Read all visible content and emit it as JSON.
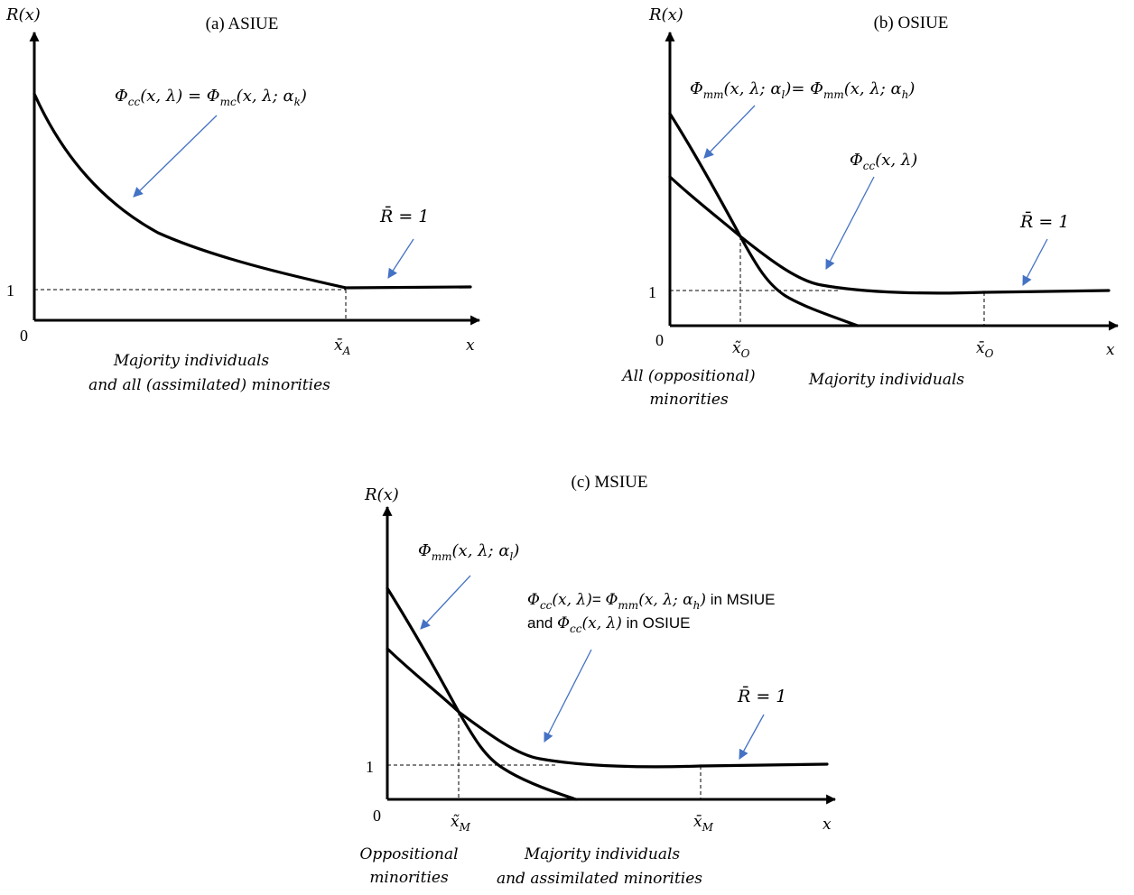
{
  "colors": {
    "ink": "#000000",
    "pointer": "#4472C4",
    "background": "#ffffff"
  },
  "panels": {
    "a": {
      "title": "(a) ASIUE",
      "y_axis_label": "R(x)",
      "x_axis_label": "x",
      "origin": "0",
      "one": "1",
      "tick_label": "x̄A",
      "curve_label": "Φcc(x, λ) = Φmc(x, λ; αk)",
      "rbar_label": "R̄ = 1",
      "regions": {
        "majority_line1": "Majority individuals",
        "majority_line2": "and all (assimilated) minorities"
      }
    },
    "b": {
      "title": "(b) OSIUE",
      "y_axis_label": "R(x)",
      "x_axis_label": "x",
      "origin": "0",
      "one": "1",
      "tick_tilde": "x̃O",
      "tick_bar": "x̄O",
      "steep_curve_label": "Φmm(x, λ; αl)= Φmm(x, λ; αh)",
      "cc_curve_label": "Φcc(x, λ)",
      "rbar_label": "R̄ = 1",
      "regions": {
        "minority_line1": "All (oppositional)",
        "minority_line2": "minorities",
        "majority": "Majority individuals"
      }
    },
    "c": {
      "title": "(c) MSIUE",
      "y_axis_label": "R(x)",
      "x_axis_label": "x",
      "origin": "0",
      "one": "1",
      "tick_tilde": "x̃M",
      "tick_bar": "x̄M",
      "steep_curve_label": "Φmm(x, λ; αl)",
      "cc_curve_label_line1": "Φcc(x, λ)= Φmm(x, λ; αh) in MSIUE",
      "cc_curve_label_line2": "and Φcc(x, λ) in OSIUE",
      "rbar_label": "R̄ = 1",
      "regions": {
        "minority_line1": "Oppositional",
        "minority_line2": "minorities",
        "majority_line1": "Majority individuals",
        "majority_line2": "and assimilated minorities"
      }
    }
  }
}
